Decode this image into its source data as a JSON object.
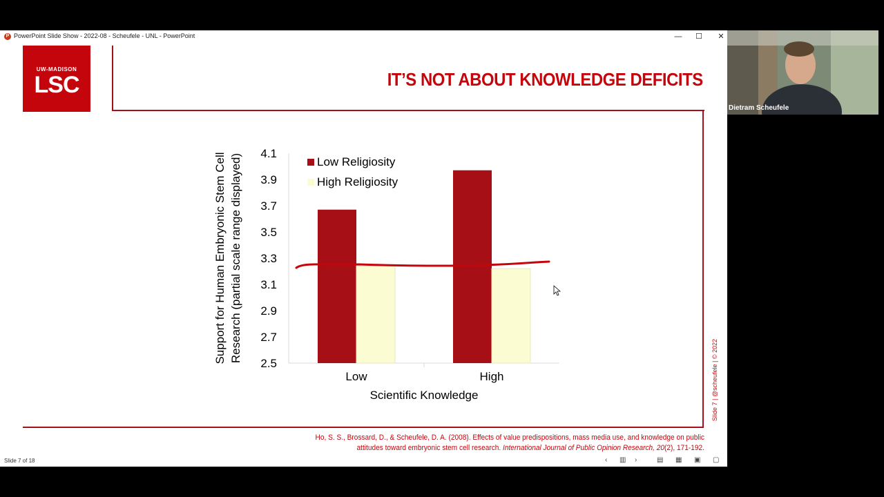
{
  "window": {
    "title": "PowerPoint Slide Show  -  2022-08 - Scheufele - UNL  -  PowerPoint",
    "icon": "powerpoint-icon",
    "minimize_glyph": "—",
    "maximize_glyph": "☐",
    "close_glyph": "✕"
  },
  "slide": {
    "logo_top": "UW-MADISON",
    "logo_main": "LSC",
    "title": "IT’S NOT ABOUT KNOWLEDGE DEFICITS",
    "credit": "Slide 7  |  @scheufele  |  © 2022",
    "citation_part1": "Ho, S. S., Brossard, D., & Scheufele, D. A. (2008). Effects of value predispositions, mass media use, and knowledge on public attitudes toward embryonic stem cell research. ",
    "citation_journal": "International Journal of Public Opinion Research, 20",
    "citation_part2": "(2), 171-192."
  },
  "chart_data": {
    "type": "bar",
    "categories": [
      "Low",
      "High"
    ],
    "series": [
      {
        "name": "Low Religiosity",
        "values": [
          3.67,
          3.97
        ],
        "color": "#a50f15"
      },
      {
        "name": "High Religiosity",
        "values": [
          3.24,
          3.22
        ],
        "color": "#fcfcd2"
      }
    ],
    "xlabel": "Scientific Knowledge",
    "ylabel_line1": "Support for Human Embryonic Stem Cell",
    "ylabel_line2": "Research (partial scale range displayed)",
    "ylim": [
      2.5,
      4.1
    ],
    "yticks": [
      "2.5",
      "2.7",
      "2.9",
      "3.1",
      "3.3",
      "3.5",
      "3.7",
      "3.9",
      "4.1"
    ],
    "legend_position": "top-left",
    "grid": false,
    "annotation": "hand-drawn red line at about 3.25"
  },
  "statusbar": {
    "slide_counter": "Slide 7 of 18",
    "icons": [
      "prev-icon",
      "slide-sorter-icon",
      "next-icon",
      "normal-view-icon",
      "grid-view-icon",
      "reading-view-icon",
      "slideshow-icon"
    ]
  },
  "video": {
    "person_name": "Dietram Scheufele"
  }
}
